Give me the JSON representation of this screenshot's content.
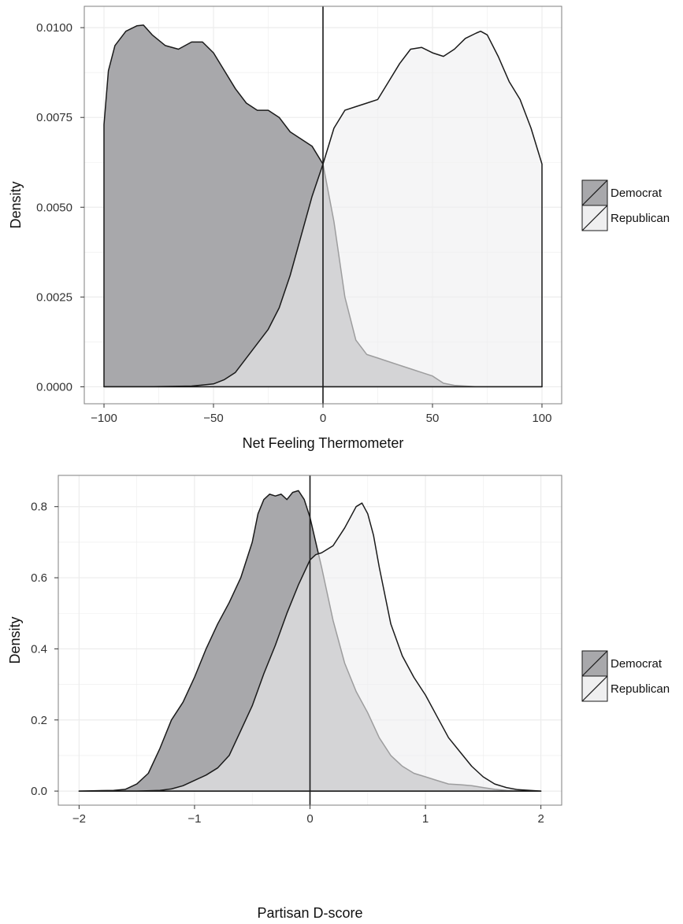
{
  "colors": {
    "democrat_fill": "#a8a8ab",
    "republican_fill": "#efeff0",
    "overlap_fill": "#c5c5c6",
    "panel_background": "#ffffff",
    "gridline": "#ececec",
    "outline": "#1a1a1a"
  },
  "chart_data": [
    {
      "type": "area",
      "title": "",
      "xlabel": "Net Feeling Thermometer",
      "ylabel": "Density",
      "xlim": [
        -100,
        100
      ],
      "ylim": [
        0,
        0.0105
      ],
      "x_ticks": [
        -100,
        -50,
        0,
        50,
        100
      ],
      "x_tick_labels": [
        "−100",
        "−50",
        "0",
        "50",
        "100"
      ],
      "y_ticks": [
        0,
        0.0025,
        0.005,
        0.0075,
        0.01
      ],
      "y_tick_labels": [
        "0.0000",
        "0.0025",
        "0.0050",
        "0.0075",
        "0.0100"
      ],
      "vline_x": 0,
      "grid": true,
      "legend_position": "right",
      "series": [
        {
          "name": "Democrat",
          "x": [
            -100,
            -98,
            -95,
            -90,
            -85,
            -82,
            -78,
            -72,
            -66,
            -60,
            -55,
            -50,
            -45,
            -40,
            -35,
            -30,
            -25,
            -20,
            -15,
            -10,
            -5,
            0,
            5,
            10,
            15,
            20,
            25,
            30,
            35,
            40,
            45,
            50,
            55,
            60,
            70,
            80,
            100
          ],
          "values": [
            0.0073,
            0.0088,
            0.0095,
            0.0099,
            0.01005,
            0.01007,
            0.0098,
            0.0095,
            0.0094,
            0.0096,
            0.0096,
            0.0093,
            0.0088,
            0.0083,
            0.0079,
            0.0077,
            0.0077,
            0.0075,
            0.0071,
            0.0069,
            0.0067,
            0.0062,
            0.0046,
            0.0025,
            0.0013,
            0.0009,
            0.0008,
            0.0007,
            0.0006,
            0.0005,
            0.0004,
            0.0003,
            0.0001,
            4e-05,
            0.0,
            0.0,
            0.0
          ]
        },
        {
          "name": "Republican",
          "x": [
            -100,
            -80,
            -60,
            -50,
            -45,
            -40,
            -35,
            -30,
            -25,
            -20,
            -15,
            -10,
            -5,
            0,
            5,
            10,
            15,
            20,
            25,
            30,
            35,
            40,
            45,
            50,
            55,
            60,
            65,
            70,
            72,
            75,
            80,
            85,
            90,
            95,
            100
          ],
          "values": [
            0.0,
            0.0,
            2e-05,
            8e-05,
            0.0002,
            0.0004,
            0.0008,
            0.0012,
            0.0016,
            0.0022,
            0.0031,
            0.0042,
            0.0053,
            0.0062,
            0.0072,
            0.0077,
            0.0078,
            0.0079,
            0.008,
            0.0085,
            0.009,
            0.0094,
            0.00945,
            0.0093,
            0.0092,
            0.0094,
            0.0097,
            0.00985,
            0.0099,
            0.0098,
            0.0092,
            0.0085,
            0.008,
            0.0072,
            0.0062
          ]
        }
      ]
    },
    {
      "type": "area",
      "title": "",
      "xlabel": "Partisan D-score",
      "ylabel": "Density",
      "xlim": [
        -2,
        2
      ],
      "ylim": [
        0,
        0.88
      ],
      "x_ticks": [
        -2,
        -1,
        0,
        1,
        2
      ],
      "x_tick_labels": [
        "−2",
        "−1",
        "0",
        "1",
        "2"
      ],
      "y_ticks": [
        0,
        0.2,
        0.4,
        0.6,
        0.8
      ],
      "y_tick_labels": [
        "0.0",
        "0.2",
        "0.4",
        "0.6",
        "0.8"
      ],
      "vline_x": 0,
      "grid": true,
      "legend_position": "right",
      "series": [
        {
          "name": "Democrat",
          "x": [
            -2,
            -1.7,
            -1.6,
            -1.5,
            -1.4,
            -1.3,
            -1.2,
            -1.1,
            -1.0,
            -0.9,
            -0.8,
            -0.7,
            -0.6,
            -0.5,
            -0.45,
            -0.4,
            -0.35,
            -0.3,
            -0.25,
            -0.2,
            -0.15,
            -0.1,
            -0.05,
            0,
            0.05,
            0.1,
            0.2,
            0.3,
            0.4,
            0.5,
            0.6,
            0.7,
            0.8,
            0.9,
            1.0,
            1.1,
            1.2,
            1.3,
            1.4,
            1.5,
            1.6,
            1.7,
            2
          ],
          "values": [
            0.0,
            0.002,
            0.005,
            0.02,
            0.05,
            0.12,
            0.2,
            0.25,
            0.32,
            0.4,
            0.47,
            0.53,
            0.6,
            0.7,
            0.78,
            0.82,
            0.835,
            0.83,
            0.835,
            0.82,
            0.84,
            0.845,
            0.82,
            0.77,
            0.7,
            0.63,
            0.48,
            0.36,
            0.28,
            0.22,
            0.15,
            0.1,
            0.07,
            0.05,
            0.04,
            0.03,
            0.02,
            0.018,
            0.015,
            0.01,
            0.005,
            0.002,
            0.0
          ]
        },
        {
          "name": "Republican",
          "x": [
            -2,
            -1.5,
            -1.3,
            -1.2,
            -1.1,
            -1.0,
            -0.9,
            -0.8,
            -0.7,
            -0.6,
            -0.5,
            -0.4,
            -0.3,
            -0.2,
            -0.1,
            0,
            0.05,
            0.1,
            0.2,
            0.3,
            0.35,
            0.4,
            0.45,
            0.5,
            0.55,
            0.6,
            0.7,
            0.8,
            0.9,
            1.0,
            1.1,
            1.2,
            1.3,
            1.4,
            1.5,
            1.6,
            1.7,
            1.8,
            2
          ],
          "values": [
            0.0,
            0.0,
            0.002,
            0.006,
            0.015,
            0.03,
            0.045,
            0.065,
            0.1,
            0.17,
            0.24,
            0.33,
            0.41,
            0.5,
            0.58,
            0.65,
            0.665,
            0.67,
            0.69,
            0.74,
            0.77,
            0.8,
            0.81,
            0.78,
            0.72,
            0.63,
            0.47,
            0.38,
            0.32,
            0.27,
            0.21,
            0.15,
            0.11,
            0.07,
            0.04,
            0.02,
            0.01,
            0.004,
            0.0
          ]
        }
      ]
    }
  ]
}
